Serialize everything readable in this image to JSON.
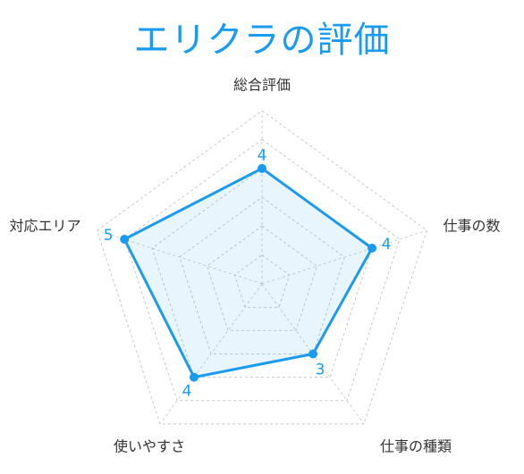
{
  "chart_data": {
    "type": "radar",
    "title": "エリクラの評価",
    "axes": [
      "総合評価",
      "仕事の数",
      "仕事の種類",
      "使いやすさ",
      "対応エリア"
    ],
    "values": [
      4,
      4,
      3,
      4,
      5
    ],
    "value_labels": [
      "4",
      "4",
      "3",
      "4",
      "5"
    ],
    "rmax": 6,
    "rings": 6,
    "grid": true,
    "colors": {
      "accent": "#1a9bf0",
      "fill": "#e6f3fd",
      "grid": "#c8c8c8",
      "label": "#333333"
    }
  }
}
